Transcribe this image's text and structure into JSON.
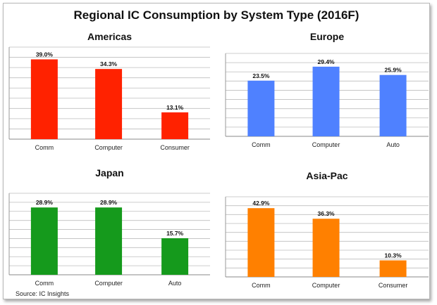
{
  "title": "Regional IC Consumption by System Type (2016F)",
  "source": "Source:  IC Insights",
  "chart_data": [
    {
      "type": "bar",
      "title": "Americas",
      "categories": [
        "Comm",
        "Computer",
        "Consumer"
      ],
      "values": [
        39.0,
        34.3,
        13.1
      ],
      "labels": [
        "39.0%",
        "34.3%",
        "13.1%"
      ],
      "color": "#ff2200",
      "ylim": [
        0,
        45
      ],
      "grid": true
    },
    {
      "type": "bar",
      "title": "Europe",
      "categories": [
        "Comm",
        "Computer",
        "Auto"
      ],
      "values": [
        23.5,
        29.4,
        25.9
      ],
      "labels": [
        "23.5%",
        "29.4%",
        "25.9%"
      ],
      "color": "#4f81ff",
      "ylim": [
        0,
        35
      ],
      "grid": true
    },
    {
      "type": "bar",
      "title": "Japan",
      "categories": [
        "Comm",
        "Computer",
        "Auto"
      ],
      "values": [
        28.9,
        28.9,
        15.7
      ],
      "labels": [
        "28.9%",
        "28.9%",
        "15.7%"
      ],
      "color": "#159a1c",
      "ylim": [
        0,
        35
      ],
      "grid": true
    },
    {
      "type": "bar",
      "title": "Asia-Pac",
      "categories": [
        "Comm",
        "Computer",
        "Consumer"
      ],
      "values": [
        42.9,
        36.3,
        10.3
      ],
      "labels": [
        "42.9%",
        "36.3%",
        "10.3%"
      ],
      "color": "#ff8000",
      "ylim": [
        0,
        50
      ],
      "grid": true
    }
  ]
}
